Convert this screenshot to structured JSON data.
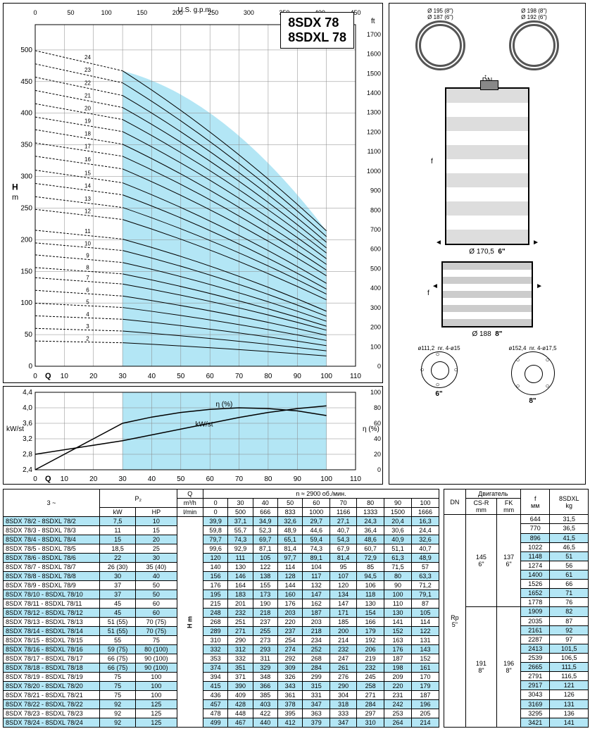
{
  "mainChart": {
    "title1": "8SDX 78",
    "title2": "8SDXL 78",
    "xmin": 0,
    "xmax": 110,
    "xstep": 10,
    "xlabel": "Q m³/h",
    "ymin": 0,
    "ymax": 540,
    "ystep": 50,
    "ylabel": "H\nm",
    "y2min": 0,
    "y2max": 1750,
    "y2step": 100,
    "y2label": "ft",
    "xtop_min": 0,
    "xtop_max": 450,
    "xtop_step": 50,
    "xtop_label": "U.S. g.p.m.",
    "fill_xstart": 30,
    "fill_xend": 100,
    "curve_labels": [
      2,
      3,
      4,
      5,
      6,
      7,
      8,
      9,
      10,
      11,
      12,
      13,
      14,
      15,
      16,
      17,
      18,
      19,
      20,
      21,
      22,
      23,
      24
    ],
    "H_at_Q0": [
      39.9,
      59.8,
      79.7,
      99.6,
      120,
      140,
      156,
      176,
      195,
      215,
      248,
      268,
      289,
      310,
      332,
      353,
      374,
      394,
      415,
      436,
      457,
      478,
      499
    ],
    "H_at_Q30": [
      37.1,
      55.7,
      74.3,
      92.9,
      111,
      130,
      146,
      164,
      183,
      201,
      232,
      251,
      271,
      290,
      312,
      332,
      351,
      371,
      390,
      409,
      428,
      448,
      467
    ],
    "H_at_Q100": [
      16.3,
      24.4,
      32.6,
      40.7,
      48.9,
      57,
      63.3,
      71.2,
      79.1,
      87,
      105,
      114,
      122,
      131,
      143,
      152,
      161,
      170,
      179,
      187,
      196,
      205,
      214
    ],
    "grid_color": "#888888",
    "fill_color": "#b3e6f5",
    "line_color": "#000000",
    "axis_fontsize": 10
  },
  "subChart": {
    "xmin": 0,
    "xmax": 110,
    "xstep": 10,
    "xlabel": "Q m³/h",
    "ymin": 2.4,
    "ymax": 4.4,
    "ystep": 0.4,
    "ylabel": "kW/st",
    "y2min": 0,
    "y2max": 100,
    "y2step": 20,
    "y2label": "η (%)",
    "eta": [
      [
        0,
        0
      ],
      [
        30,
        60
      ],
      [
        40,
        68
      ],
      [
        50,
        74
      ],
      [
        60,
        78
      ],
      [
        70,
        80
      ],
      [
        80,
        79
      ],
      [
        90,
        76
      ],
      [
        100,
        70
      ]
    ],
    "kwst": [
      [
        0,
        2.8
      ],
      [
        30,
        3.15
      ],
      [
        40,
        3.3
      ],
      [
        50,
        3.45
      ],
      [
        60,
        3.6
      ],
      [
        70,
        3.75
      ],
      [
        80,
        3.88
      ],
      [
        90,
        3.98
      ],
      [
        100,
        4.05
      ]
    ],
    "label_eta": "η (%)",
    "label_kw": "kW/st",
    "fill_color": "#b3e6f5",
    "grid_color": "#888888"
  },
  "diagrams": {
    "top_left": "Ø 195 (8\")",
    "top_left2": "Ø 187 (6\")",
    "top_right": "Ø 198 (8\")",
    "top_right2": "Ø 192 (6\")",
    "dn": "DN",
    "f": "f",
    "d1": "Ø 170,5",
    "d1s": "6\"",
    "d2": "Ø 188",
    "d2s": "8\"",
    "flange6": "ø111,2",
    "flange6h": "nr. 4-ø15",
    "flange6s": "6\"",
    "flange8": "ø152,4",
    "flange8h": "nr. 4-ø17,5",
    "flange8s": "8\""
  },
  "table": {
    "header3": "3 ~",
    "headerP2": "P₂",
    "headerQ": "Q",
    "header_rpm": "n ≈ 2900 об./мин.",
    "units_kw": "kW",
    "units_hp": "HP",
    "units_q": "m³/h",
    "units_l": "l/min",
    "units_H": "H\nm",
    "q_cols": [
      0,
      30,
      40,
      50,
      60,
      70,
      80,
      90,
      100
    ],
    "l_cols": [
      0,
      500,
      666,
      833,
      1000,
      1166,
      1333,
      1500,
      1666
    ],
    "rows": [
      {
        "m": "8SDX 78/2 - 8SDXL 78/2",
        "kw": "7,5",
        "hp": "10",
        "h": [
          39.9,
          37.1,
          34.9,
          32.6,
          29.7,
          27.1,
          24.3,
          20.4,
          16.3
        ],
        "hl": 1
      },
      {
        "m": "8SDX 78/3 - 8SDXL 78/3",
        "kw": "11",
        "hp": "15",
        "h": [
          59.8,
          55.7,
          52.3,
          48.9,
          44.6,
          40.7,
          36.4,
          30.6,
          24.4
        ],
        "hl": 0
      },
      {
        "m": "8SDX 78/4 - 8SDXL 78/4",
        "kw": "15",
        "hp": "20",
        "h": [
          79.7,
          74.3,
          69.7,
          65.1,
          59.4,
          54.3,
          48.6,
          40.9,
          32.6
        ],
        "hl": 1
      },
      {
        "m": "8SDX 78/5 - 8SDXL 78/5",
        "kw": "18,5",
        "hp": "25",
        "h": [
          99.6,
          92.9,
          87.1,
          81.4,
          74.3,
          67.9,
          60.7,
          51.1,
          40.7
        ],
        "hl": 0
      },
      {
        "m": "8SDX 78/6 - 8SDXL 78/6",
        "kw": "22",
        "hp": "30",
        "h": [
          120,
          111,
          105,
          97.7,
          89.1,
          81.4,
          72.9,
          61.3,
          48.9
        ],
        "hl": 1
      },
      {
        "m": "8SDX 78/7 - 8SDXL 78/7",
        "kw": "26 (30)",
        "hp": "35 (40)",
        "h": [
          140,
          130,
          122,
          114,
          104,
          95,
          85,
          71.5,
          57
        ],
        "hl": 0
      },
      {
        "m": "8SDX 78/8 - 8SDXL 78/8",
        "kw": "30",
        "hp": "40",
        "h": [
          156,
          146,
          138,
          128,
          117,
          107,
          94.5,
          80,
          63.3
        ],
        "hl": 1
      },
      {
        "m": "8SDX 78/9 - 8SDXL 78/9",
        "kw": "37",
        "hp": "50",
        "h": [
          176,
          164,
          155,
          144,
          132,
          120,
          106,
          90,
          71.2
        ],
        "hl": 0
      },
      {
        "m": "8SDX 78/10 - 8SDXL 78/10",
        "kw": "37",
        "hp": "50",
        "h": [
          195,
          183,
          173,
          160,
          147,
          134,
          118,
          100,
          79.1
        ],
        "hl": 1
      },
      {
        "m": "8SDX 78/11 - 8SDXL 78/11",
        "kw": "45",
        "hp": "60",
        "h": [
          215,
          201,
          190,
          176,
          162,
          147,
          130,
          110,
          87
        ],
        "hl": 0
      },
      {
        "m": "8SDX 78/12 - 8SDXL 78/12",
        "kw": "45",
        "hp": "60",
        "h": [
          248,
          232,
          218,
          203,
          187,
          171,
          154,
          130,
          105
        ],
        "hl": 1
      },
      {
        "m": "8SDX 78/13 - 8SDXL 78/13",
        "kw": "51 (55)",
        "hp": "70 (75)",
        "h": [
          268,
          251,
          237,
          220,
          203,
          185,
          166,
          141,
          114
        ],
        "hl": 0
      },
      {
        "m": "8SDX 78/14 - 8SDXL 78/14",
        "kw": "51 (55)",
        "hp": "70 (75)",
        "h": [
          289,
          271,
          255,
          237,
          218,
          200,
          179,
          152,
          122
        ],
        "hl": 1
      },
      {
        "m": "8SDX 78/15 - 8SDXL 78/15",
        "kw": "55",
        "hp": "75",
        "h": [
          310,
          290,
          273,
          254,
          234,
          214,
          192,
          163,
          131
        ],
        "hl": 0
      },
      {
        "m": "8SDX 78/16 - 8SDXL 78/16",
        "kw": "59 (75)",
        "hp": "80 (100)",
        "h": [
          332,
          312,
          293,
          274,
          252,
          232,
          206,
          176,
          143
        ],
        "hl": 1
      },
      {
        "m": "8SDX 78/17 - 8SDXL 78/17",
        "kw": "66 (75)",
        "hp": "90 (100)",
        "h": [
          353,
          332,
          311,
          292,
          268,
          247,
          219,
          187,
          152
        ],
        "hl": 0
      },
      {
        "m": "8SDX 78/18 - 8SDXL 78/18",
        "kw": "66 (75)",
        "hp": "90 (100)",
        "h": [
          374,
          351,
          329,
          309,
          284,
          261,
          232,
          198,
          161
        ],
        "hl": 1
      },
      {
        "m": "8SDX 78/19 - 8SDXL 78/19",
        "kw": "75",
        "hp": "100",
        "h": [
          394,
          371,
          348,
          326,
          299,
          276,
          245,
          209,
          170
        ],
        "hl": 0
      },
      {
        "m": "8SDX 78/20 - 8SDXL 78/20",
        "kw": "75",
        "hp": "100",
        "h": [
          415,
          390,
          366,
          343,
          315,
          290,
          258,
          220,
          179
        ],
        "hl": 1
      },
      {
        "m": "8SDX 78/21 - 8SDXL 78/21",
        "kw": "75",
        "hp": "100",
        "h": [
          436,
          409,
          385,
          361,
          331,
          304,
          271,
          231,
          187
        ],
        "hl": 0
      },
      {
        "m": "8SDX 78/22 - 8SDXL 78/22",
        "kw": "92",
        "hp": "125",
        "h": [
          457,
          428,
          403,
          378,
          347,
          318,
          284,
          242,
          196
        ],
        "hl": 1
      },
      {
        "m": "8SDX 78/23 - 8SDXL 78/23",
        "kw": "92",
        "hp": "125",
        "h": [
          478,
          448,
          422,
          395,
          363,
          333,
          297,
          253,
          205
        ],
        "hl": 0
      },
      {
        "m": "8SDX 78/24 - 8SDXL 78/24",
        "kw": "92",
        "hp": "125",
        "h": [
          499,
          467,
          440,
          412,
          379,
          347,
          310,
          264,
          214
        ],
        "hl": 1
      }
    ]
  },
  "dimTable": {
    "hdr_dn": "DN",
    "hdr_motor": "Двигатель",
    "hdr_csr": "CS-R\nmm",
    "hdr_fk": "FK\nmm",
    "hdr_f": "f\nмм",
    "hdr_w": "8SDXL\nkg",
    "dn_val": "Rp\n5\"",
    "motor1_csr": "145\n6\"",
    "motor1_fk": "137\n6\"",
    "motor2_csr": "191\n8\"",
    "motor2_fk": "196\n8\"",
    "rows": [
      {
        "f": 644,
        "kg": "31,5",
        "hl": 0
      },
      {
        "f": 770,
        "kg": "36,5",
        "hl": 0
      },
      {
        "f": 896,
        "kg": "41,5",
        "hl": 1
      },
      {
        "f": 1022,
        "kg": "46,5",
        "hl": 0
      },
      {
        "f": 1148,
        "kg": "51",
        "hl": 1
      },
      {
        "f": 1274,
        "kg": "56",
        "hl": 0
      },
      {
        "f": 1400,
        "kg": "61",
        "hl": 1
      },
      {
        "f": 1526,
        "kg": "66",
        "hl": 0
      },
      {
        "f": 1652,
        "kg": "71",
        "hl": 1
      },
      {
        "f": 1778,
        "kg": "76",
        "hl": 0
      },
      {
        "f": 1909,
        "kg": "82",
        "hl": 1
      },
      {
        "f": 2035,
        "kg": "87",
        "hl": 0
      },
      {
        "f": 2161,
        "kg": "92",
        "hl": 1
      },
      {
        "f": 2287,
        "kg": "97",
        "hl": 0
      },
      {
        "f": 2413,
        "kg": "101,5",
        "hl": 1
      },
      {
        "f": 2539,
        "kg": "106,5",
        "hl": 0
      },
      {
        "f": 2665,
        "kg": "111,5",
        "hl": 1
      },
      {
        "f": 2791,
        "kg": "116,5",
        "hl": 0
      },
      {
        "f": 2917,
        "kg": "121",
        "hl": 1
      },
      {
        "f": 3043,
        "kg": "126",
        "hl": 0
      },
      {
        "f": 3169,
        "kg": "131",
        "hl": 1
      },
      {
        "f": 3295,
        "kg": "136",
        "hl": 0
      },
      {
        "f": 3421,
        "kg": "141",
        "hl": 1
      }
    ]
  }
}
